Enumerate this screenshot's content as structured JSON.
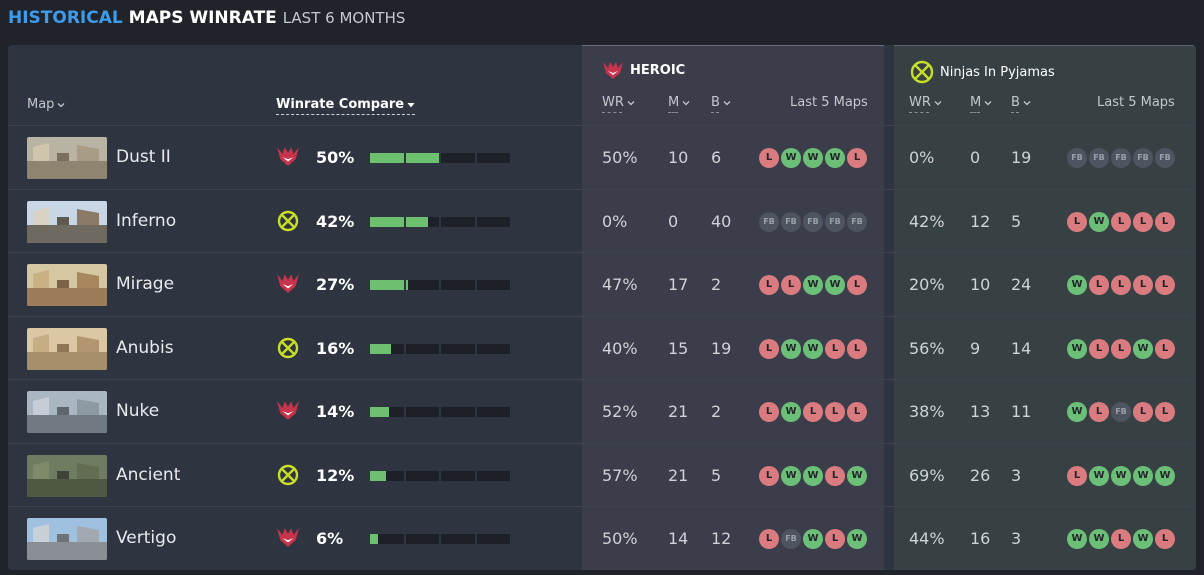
{
  "title": {
    "part1": "HISTORICAL",
    "part2": "MAPS WINRATE",
    "part3": "LAST 6 MONTHS"
  },
  "colors": {
    "accent": "#3d9be9",
    "win": "#6cbf77",
    "loss": "#d97b7f",
    "fallback": "#4e5460",
    "bar_fill": "#6cc06f"
  },
  "header": {
    "map_label": "Map",
    "compare_label": "Winrate Compare",
    "teams": [
      {
        "name": "HEROIC",
        "icon": "heroic-logo-icon",
        "wr": "WR",
        "m": "M",
        "b": "B",
        "last5": "Last 5 Maps"
      },
      {
        "name": "Ninjas In Pyjamas",
        "icon": "nip-logo-icon",
        "wr": "WR",
        "m": "M",
        "b": "B",
        "last5": "Last 5 Maps"
      }
    ]
  },
  "rows": [
    {
      "map": "Dust II",
      "fav": "heroic",
      "pct": "50%",
      "fill": 0.5,
      "heroic": {
        "wr": "50%",
        "m": "10",
        "b": "6",
        "last5": [
          "L",
          "W",
          "W",
          "W",
          "L"
        ]
      },
      "nip": {
        "wr": "0%",
        "m": "0",
        "b": "19",
        "last5": [
          "FB",
          "FB",
          "FB",
          "FB",
          "FB"
        ]
      }
    },
    {
      "map": "Inferno",
      "fav": "nip",
      "pct": "42%",
      "fill": 0.42,
      "heroic": {
        "wr": "0%",
        "m": "0",
        "b": "40",
        "last5": [
          "FB",
          "FB",
          "FB",
          "FB",
          "FB"
        ]
      },
      "nip": {
        "wr": "42%",
        "m": "12",
        "b": "5",
        "last5": [
          "L",
          "W",
          "L",
          "L",
          "L"
        ]
      }
    },
    {
      "map": "Mirage",
      "fav": "heroic",
      "pct": "27%",
      "fill": 0.27,
      "heroic": {
        "wr": "47%",
        "m": "17",
        "b": "2",
        "last5": [
          "L",
          "L",
          "W",
          "W",
          "L"
        ]
      },
      "nip": {
        "wr": "20%",
        "m": "10",
        "b": "24",
        "last5": [
          "W",
          "L",
          "L",
          "L",
          "L"
        ]
      }
    },
    {
      "map": "Anubis",
      "fav": "nip",
      "pct": "16%",
      "fill": 0.16,
      "heroic": {
        "wr": "40%",
        "m": "15",
        "b": "19",
        "last5": [
          "L",
          "W",
          "W",
          "L",
          "L"
        ]
      },
      "nip": {
        "wr": "56%",
        "m": "9",
        "b": "14",
        "last5": [
          "W",
          "L",
          "L",
          "W",
          "L"
        ]
      }
    },
    {
      "map": "Nuke",
      "fav": "heroic",
      "pct": "14%",
      "fill": 0.14,
      "heroic": {
        "wr": "52%",
        "m": "21",
        "b": "2",
        "last5": [
          "L",
          "W",
          "L",
          "L",
          "L"
        ]
      },
      "nip": {
        "wr": "38%",
        "m": "13",
        "b": "11",
        "last5": [
          "W",
          "L",
          "FB",
          "L",
          "L"
        ]
      }
    },
    {
      "map": "Ancient",
      "fav": "nip",
      "pct": "12%",
      "fill": 0.12,
      "heroic": {
        "wr": "57%",
        "m": "21",
        "b": "5",
        "last5": [
          "L",
          "W",
          "W",
          "L",
          "W"
        ]
      },
      "nip": {
        "wr": "69%",
        "m": "26",
        "b": "3",
        "last5": [
          "L",
          "W",
          "W",
          "W",
          "W"
        ]
      }
    },
    {
      "map": "Vertigo",
      "fav": "heroic",
      "pct": "6%",
      "fill": 0.06,
      "heroic": {
        "wr": "50%",
        "m": "14",
        "b": "12",
        "last5": [
          "L",
          "FB",
          "W",
          "L",
          "W"
        ]
      },
      "nip": {
        "wr": "44%",
        "m": "16",
        "b": "3",
        "last5": [
          "W",
          "W",
          "L",
          "W",
          "L"
        ]
      }
    }
  ]
}
